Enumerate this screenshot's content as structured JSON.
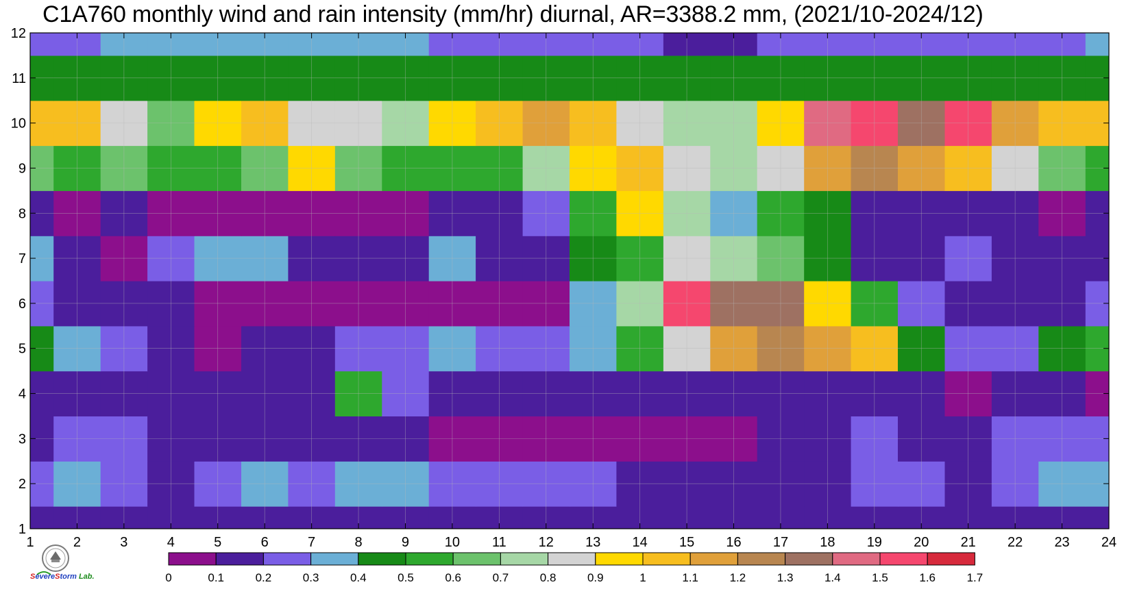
{
  "title": "C1A760 monthly wind and rain intensity (mm/hr) diurnal, AR=3388.2 mm, (2021/10-2024/12)",
  "logo": {
    "part1": "S",
    "part2": "evere",
    "part3": "S",
    "part4": "torm",
    "part5": " Lab."
  },
  "chart_data": {
    "type": "heatmap",
    "title": "C1A760 monthly wind and rain intensity (mm/hr) diurnal, AR=3388.2 mm, (2021/10-2024/12)",
    "x": [
      1,
      2,
      3,
      4,
      5,
      6,
      7,
      8,
      9,
      10,
      11,
      12,
      13,
      14,
      15,
      16,
      17,
      18,
      19,
      20,
      21,
      22,
      23,
      24
    ],
    "y": [
      1,
      2,
      3,
      4,
      5,
      6,
      7,
      8,
      9,
      10,
      11,
      12
    ],
    "xlim": [
      1,
      24
    ],
    "ylim": [
      1,
      12
    ],
    "x_ticks": [
      "1",
      "2",
      "3",
      "4",
      "5",
      "6",
      "7",
      "8",
      "9",
      "10",
      "11",
      "12",
      "13",
      "14",
      "15",
      "16",
      "17",
      "18",
      "19",
      "20",
      "21",
      "22",
      "23",
      "24"
    ],
    "y_ticks": [
      "1",
      "2",
      "3",
      "4",
      "5",
      "6",
      "7",
      "8",
      "9",
      "10",
      "11",
      "12"
    ],
    "grid": true,
    "contour_levels": [
      0,
      0.1,
      0.2,
      0.3,
      0.4,
      0.5,
      0.6,
      0.7,
      0.8,
      0.9,
      1,
      1.1,
      1.2,
      1.3,
      1.4,
      1.5,
      1.6,
      1.7
    ],
    "colorbar_labels": [
      "0",
      "0.1",
      "0.2",
      "0.3",
      "0.4",
      "0.5",
      "0.6",
      "0.7",
      "0.8",
      "0.9",
      "1",
      "1.1",
      "1.2",
      "1.3",
      "1.4",
      "1.5",
      "1.6",
      "1.7"
    ],
    "colors": [
      "#8c0f8c",
      "#4b1e9c",
      "#7a5ee6",
      "#6bafd6",
      "#178a17",
      "#2ea82e",
      "#6cc26c",
      "#a6d7a6",
      "#d3d3d3",
      "#ffd900",
      "#f7be1f",
      "#e0a03a",
      "#b88650",
      "#9e7162",
      "#e06a82",
      "#f5476e",
      "#d72a3c"
    ],
    "z": [
      [
        0.15,
        0.15,
        0.15,
        0.15,
        0.15,
        0.15,
        0.15,
        0.15,
        0.15,
        0.15,
        0.15,
        0.15,
        0.15,
        0.15,
        0.15,
        0.15,
        0.15,
        0.15,
        0.15,
        0.15,
        0.15,
        0.15,
        0.15,
        0.15
      ],
      [
        0.25,
        0.35,
        0.25,
        0.15,
        0.25,
        0.35,
        0.25,
        0.35,
        0.35,
        0.25,
        0.25,
        0.25,
        0.25,
        0.15,
        0.15,
        0.15,
        0.15,
        0.15,
        0.25,
        0.25,
        0.15,
        0.25,
        0.35,
        0.35
      ],
      [
        0.15,
        0.25,
        0.25,
        0.15,
        0.15,
        0.15,
        0.15,
        0.15,
        0.15,
        0.05,
        0.05,
        0.05,
        0.05,
        0.05,
        0.05,
        0.05,
        0.15,
        0.15,
        0.25,
        0.15,
        0.15,
        0.25,
        0.25,
        0.25
      ],
      [
        0.15,
        0.15,
        0.15,
        0.15,
        0.15,
        0.15,
        0.15,
        0.55,
        0.25,
        0.15,
        0.15,
        0.15,
        0.15,
        0.15,
        0.15,
        0.15,
        0.15,
        0.15,
        0.15,
        0.15,
        0.05,
        0.15,
        0.15,
        0.05
      ],
      [
        0.45,
        0.35,
        0.25,
        0.15,
        0.05,
        0.15,
        0.15,
        0.25,
        0.25,
        0.35,
        0.25,
        0.25,
        0.35,
        0.55,
        0.85,
        1.15,
        1.25,
        1.15,
        1.05,
        0.45,
        0.25,
        0.25,
        0.45,
        0.55
      ],
      [
        0.25,
        0.15,
        0.15,
        0.15,
        0.05,
        0.05,
        0.05,
        0.05,
        0.05,
        0.05,
        0.05,
        0.05,
        0.35,
        0.75,
        1.55,
        1.35,
        1.35,
        0.95,
        0.55,
        0.25,
        0.15,
        0.15,
        0.15,
        0.25
      ],
      [
        0.35,
        0.15,
        0.05,
        0.25,
        0.35,
        0.35,
        0.15,
        0.15,
        0.15,
        0.35,
        0.15,
        0.15,
        0.45,
        0.55,
        0.85,
        0.75,
        0.65,
        0.45,
        0.15,
        0.15,
        0.25,
        0.15,
        0.15,
        0.15
      ],
      [
        0.15,
        0.05,
        0.15,
        0.05,
        0.05,
        0.05,
        0.05,
        0.05,
        0.05,
        0.15,
        0.15,
        0.25,
        0.55,
        0.95,
        0.75,
        0.35,
        0.55,
        0.45,
        0.15,
        0.15,
        0.15,
        0.15,
        0.05,
        0.15
      ],
      [
        0.65,
        0.55,
        0.65,
        0.55,
        0.55,
        0.65,
        0.95,
        0.65,
        0.55,
        0.55,
        0.55,
        0.75,
        0.95,
        1.05,
        0.85,
        0.75,
        0.85,
        1.15,
        1.25,
        1.15,
        1.05,
        0.85,
        0.65,
        0.55
      ],
      [
        1.05,
        1.05,
        0.85,
        0.65,
        0.95,
        1.05,
        0.85,
        0.85,
        0.75,
        0.95,
        1.05,
        1.15,
        1.05,
        0.85,
        0.75,
        0.75,
        0.95,
        1.45,
        1.55,
        1.35,
        1.55,
        1.15,
        1.05,
        1.05
      ],
      [
        0.45,
        0.45,
        0.45,
        0.45,
        0.45,
        0.45,
        0.45,
        0.45,
        0.45,
        0.45,
        0.45,
        0.45,
        0.45,
        0.45,
        0.45,
        0.45,
        0.45,
        0.45,
        0.45,
        0.45,
        0.45,
        0.45,
        0.45,
        0.45
      ],
      [
        0.25,
        0.25,
        0.35,
        0.35,
        0.35,
        0.35,
        0.35,
        0.35,
        0.35,
        0.25,
        0.25,
        0.25,
        0.25,
        0.25,
        0.15,
        0.15,
        0.25,
        0.25,
        0.25,
        0.25,
        0.25,
        0.25,
        0.25,
        0.35
      ]
    ]
  }
}
